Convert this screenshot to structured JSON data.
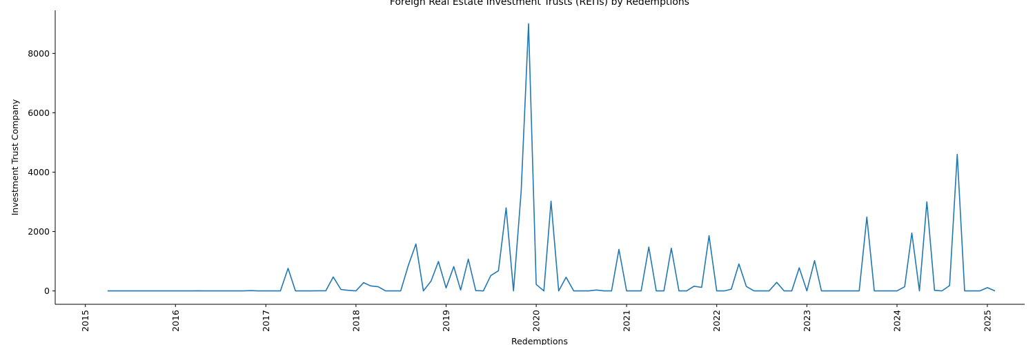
{
  "chart_data": {
    "type": "line",
    "title": "Foreign Real Estate Investment Trusts (REITs) by Redemptions",
    "xlabel": "Redemptions",
    "ylabel": "Investment Trust Company",
    "xlim": [
      "2014-09-01",
      "2025-06-01"
    ],
    "ylim": [
      -450,
      9450
    ],
    "x_ticks": [
      "2015-01-01",
      "2016-01-01",
      "2017-01-01",
      "2018-01-01",
      "2019-01-01",
      "2020-01-01",
      "2021-01-01",
      "2022-01-01",
      "2023-01-01",
      "2024-01-01",
      "2025-01-01"
    ],
    "x_tick_labels": [
      "2015",
      "2016",
      "2017",
      "2018",
      "2019",
      "2020",
      "2021",
      "2022",
      "2023",
      "2024",
      "2025"
    ],
    "y_ticks": [
      0,
      2000,
      4000,
      6000,
      8000
    ],
    "y_tick_labels": [
      "0",
      "2000",
      "4000",
      "6000",
      "8000"
    ],
    "grid": false,
    "line_color": "#1f77b4",
    "series": [
      {
        "x": [
          "2015-04-01",
          "2015-05-01",
          "2015-06-01",
          "2015-07-01",
          "2015-08-01",
          "2015-09-01",
          "2015-10-01",
          "2015-11-01",
          "2015-12-01",
          "2016-01-01",
          "2016-02-01",
          "2016-03-01",
          "2016-04-01",
          "2016-05-01",
          "2016-06-01",
          "2016-07-01",
          "2016-08-01",
          "2016-09-01",
          "2016-10-01",
          "2016-11-01",
          "2016-12-01",
          "2017-01-01",
          "2017-02-01",
          "2017-03-01",
          "2017-04-01",
          "2017-05-01",
          "2017-06-01",
          "2017-07-01",
          "2017-08-01",
          "2017-09-01",
          "2017-10-01",
          "2017-11-01",
          "2017-12-01",
          "2018-01-01",
          "2018-02-01",
          "2018-03-01",
          "2018-04-01",
          "2018-05-01",
          "2018-06-01",
          "2018-07-01",
          "2018-08-01",
          "2018-09-01",
          "2018-10-01",
          "2018-11-01",
          "2018-12-01",
          "2019-01-01",
          "2019-02-01",
          "2019-03-01",
          "2019-04-01",
          "2019-05-01",
          "2019-06-01",
          "2019-07-01",
          "2019-08-01",
          "2019-09-01",
          "2019-10-01",
          "2019-11-01",
          "2019-12-01",
          "2020-01-01",
          "2020-02-01",
          "2020-03-01",
          "2020-04-01",
          "2020-05-01",
          "2020-06-01",
          "2020-07-01",
          "2020-08-01",
          "2020-09-01",
          "2020-10-01",
          "2020-11-01",
          "2020-12-01",
          "2021-01-01",
          "2021-02-01",
          "2021-03-01",
          "2021-04-01",
          "2021-05-01",
          "2021-06-01",
          "2021-07-01",
          "2021-08-01",
          "2021-09-01",
          "2021-10-01",
          "2021-11-01",
          "2021-12-01",
          "2022-01-01",
          "2022-02-01",
          "2022-03-01",
          "2022-04-01",
          "2022-05-01",
          "2022-06-01",
          "2022-07-01",
          "2022-08-01",
          "2022-09-01",
          "2022-10-01",
          "2022-11-01",
          "2022-12-01",
          "2023-01-01",
          "2023-02-01",
          "2023-03-01",
          "2023-04-01",
          "2023-05-01",
          "2023-06-01",
          "2023-07-01",
          "2023-08-01",
          "2023-09-01",
          "2023-10-01",
          "2023-11-01",
          "2023-12-01",
          "2024-01-01",
          "2024-02-01",
          "2024-03-01",
          "2024-04-01",
          "2024-05-01",
          "2024-06-01",
          "2024-07-01",
          "2024-08-01",
          "2024-09-01",
          "2024-10-01",
          "2024-11-01",
          "2024-12-01",
          "2025-01-01",
          "2025-02-01"
        ],
        "y": [
          0,
          0,
          0,
          0,
          0,
          0,
          0,
          0,
          0,
          0,
          0,
          0,
          5,
          0,
          0,
          0,
          0,
          0,
          0,
          10,
          0,
          0,
          0,
          0,
          760,
          0,
          0,
          0,
          5,
          5,
          470,
          50,
          20,
          0,
          280,
          170,
          140,
          0,
          0,
          0,
          860,
          1580,
          0,
          330,
          990,
          100,
          820,
          30,
          1070,
          10,
          0,
          520,
          680,
          2800,
          0,
          3350,
          9000,
          220,
          0,
          3020,
          0,
          460,
          0,
          0,
          0,
          30,
          0,
          0,
          1400,
          0,
          0,
          0,
          1480,
          0,
          0,
          1440,
          0,
          0,
          160,
          120,
          1860,
          0,
          0,
          60,
          910,
          150,
          0,
          0,
          0,
          290,
          0,
          0,
          780,
          0,
          1020,
          0,
          0,
          0,
          0,
          0,
          0,
          2490,
          0,
          0,
          0,
          0,
          140,
          1950,
          0,
          3000,
          20,
          0,
          180,
          4600,
          0,
          0,
          0,
          110,
          0
        ]
      }
    ]
  }
}
